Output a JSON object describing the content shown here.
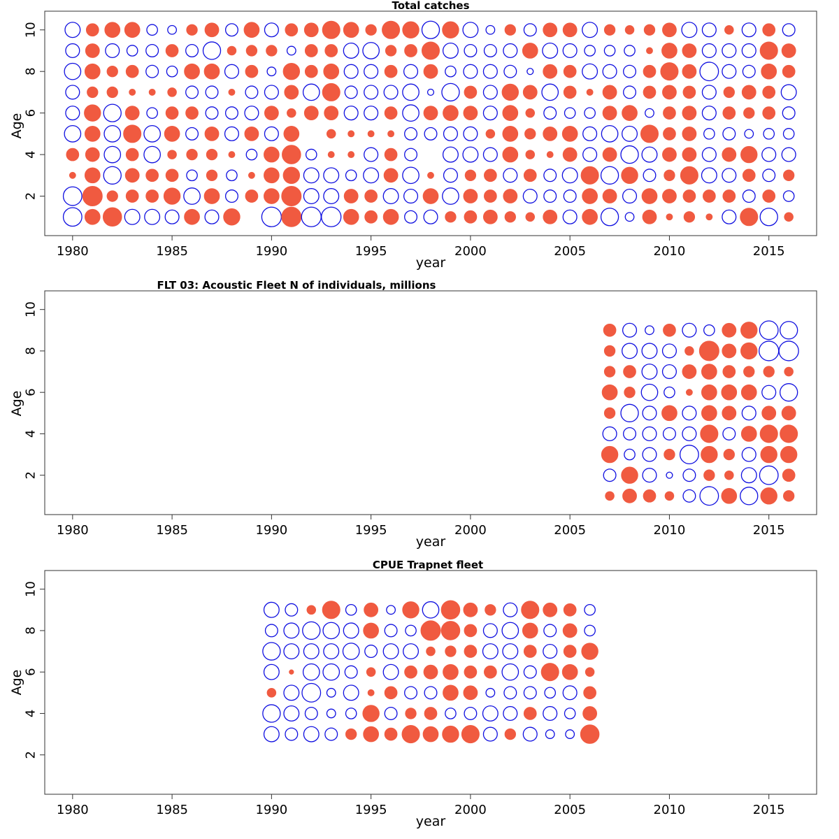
{
  "colors": {
    "positive": "#f05a40",
    "negative": "#1010e0",
    "axis": "#333333"
  },
  "chart_data": [
    {
      "type": "scatter",
      "subtype": "bubble",
      "title": "Total catches",
      "xlabel": "year",
      "ylabel": "Age",
      "xticks": [
        1980,
        1985,
        1990,
        1995,
        2000,
        2005,
        2010,
        2015
      ],
      "yticks": [
        2,
        4,
        6,
        8,
        10
      ],
      "xlim": [
        1978.6,
        2017.4
      ],
      "ylim": [
        0.1,
        10.9
      ],
      "x": [
        1980,
        1981,
        1982,
        1983,
        1984,
        1985,
        1986,
        1987,
        1988,
        1989,
        1990,
        1991,
        1992,
        1993,
        1994,
        1995,
        1996,
        1997,
        1998,
        1999,
        2000,
        2001,
        2002,
        2003,
        2004,
        2005,
        2006,
        2007,
        2008,
        2009,
        2010,
        2011,
        2012,
        2013,
        2014,
        2015,
        2016
      ],
      "ages": [
        1,
        2,
        3,
        4,
        5,
        6,
        7,
        8,
        9,
        10
      ],
      "encoding": "bubble area ~ |residual|; filled orange = positive, open blue = negative",
      "residuals": [
        [
          -0.9,
          0.6,
          0.9,
          -0.6,
          -0.6,
          -0.5,
          0.6,
          -0.5,
          0.7,
          0,
          -1,
          1,
          -1,
          -1,
          0.6,
          0.4,
          0.6,
          -0.4,
          -0.5,
          0.3,
          0.4,
          0.5,
          0.3,
          0.2,
          0.5,
          -0.5,
          0.6,
          -0.8,
          -0.2,
          0.5,
          0.1,
          0.3,
          0.1,
          -0.5,
          0.8,
          -0.8,
          0.2
        ],
        [
          -0.9,
          1,
          0.3,
          0.4,
          0.4,
          0.7,
          -0.7,
          0.6,
          -0.4,
          0.4,
          0.6,
          1,
          -0.6,
          -0.6,
          0.5,
          0.4,
          -0.6,
          -0.5,
          0.6,
          -0.7,
          0.5,
          0.4,
          0.5,
          -0.5,
          -0.4,
          -0.4,
          0.6,
          0.5,
          -0.5,
          0.6,
          0.5,
          0.4,
          0.4,
          0.4,
          -0.4,
          0.4,
          -0.3
        ],
        [
          0.1,
          0.6,
          -0.8,
          0.5,
          0.4,
          0.4,
          -0.3,
          0.3,
          -0.3,
          0.1,
          0.6,
          0.7,
          -0.6,
          -0.6,
          -0.3,
          -0.6,
          0.5,
          -0.7,
          0.1,
          -0.5,
          0.3,
          0.4,
          -0.5,
          0.4,
          -0.4,
          -0.6,
          0.8,
          -0.8,
          0.7,
          -0.4,
          0.3,
          0.8,
          -0.6,
          -0.5,
          0.4,
          -0.4,
          0.3
        ],
        [
          0.4,
          0.5,
          -0.7,
          0.4,
          -0.7,
          0.2,
          0.3,
          0.3,
          0.1,
          -0.3,
          0.6,
          0.9,
          -0.3,
          0.1,
          0.1,
          -0.5,
          0.4,
          -0.4,
          0,
          -0.6,
          -0.6,
          -0.5,
          0.6,
          0.2,
          0.1,
          0.5,
          -0.5,
          0.5,
          -0.8,
          -0.6,
          0.5,
          0.5,
          -0.5,
          0.5,
          0.7,
          -0.5,
          -0.5
        ],
        [
          -0.7,
          0.6,
          -0.7,
          0.8,
          -0.7,
          0.6,
          -0.4,
          0.5,
          -0.5,
          0.5,
          -0.5,
          0.6,
          0,
          0.2,
          0.1,
          0.1,
          0.1,
          -0.4,
          -0.4,
          -0.5,
          -0.5,
          0.2,
          0.6,
          0.3,
          0.5,
          0.6,
          -0.5,
          -0.7,
          -0.6,
          0.8,
          0.4,
          0.5,
          -0.3,
          -0.4,
          -0.2,
          -0.3,
          -0.3
        ],
        [
          -0.5,
          0.7,
          -0.8,
          0.5,
          -0.3,
          0.4,
          0.4,
          -0.4,
          -0.4,
          -0.5,
          0.5,
          0.2,
          0.5,
          0.5,
          -0.5,
          -0.5,
          0.4,
          -0.7,
          0.5,
          0.6,
          0.5,
          -0.5,
          0.6,
          0.2,
          -0.4,
          -0.3,
          -0.3,
          0.5,
          0.6,
          -0.2,
          0.4,
          0.5,
          -0.5,
          0.4,
          0.3,
          0.4,
          -0.4
        ],
        [
          -0.5,
          0.3,
          0.3,
          0.1,
          0.1,
          0.2,
          -0.4,
          -0.4,
          0.1,
          -0.4,
          -0.5,
          0.5,
          -0.7,
          0.8,
          -0.4,
          -0.5,
          -0.5,
          -0.7,
          -0.1,
          -0.8,
          0.4,
          -0.5,
          0.7,
          0.5,
          -0.7,
          0.4,
          0.1,
          0.5,
          -0.4,
          0.4,
          0.5,
          0.4,
          -0.5,
          0.3,
          0.5,
          0.4,
          -0.6
        ],
        [
          -0.7,
          0.6,
          0.3,
          0.4,
          -0.4,
          -0.3,
          0.6,
          0.6,
          -0.5,
          0.4,
          -0.2,
          0.7,
          0.4,
          0.6,
          -0.5,
          -0.5,
          0.4,
          -0.5,
          0.5,
          -0.3,
          -0.5,
          -0.5,
          -0.4,
          -0.1,
          0.5,
          0.4,
          -0.6,
          -0.5,
          -0.4,
          0.4,
          0.8,
          0.5,
          -0.9,
          -0.5,
          -0.4,
          0.6,
          0.4
        ],
        [
          -0.5,
          0.5,
          -0.5,
          -0.3,
          -0.4,
          0.4,
          -0.4,
          -0.8,
          0.2,
          0.3,
          0.3,
          -0.2,
          0.4,
          0.4,
          -0.6,
          -0.7,
          0.3,
          0.4,
          0.8,
          -0.6,
          -0.4,
          -0.4,
          -0.5,
          0.6,
          -0.6,
          -0.5,
          -0.3,
          -0.3,
          -0.3,
          0.1,
          0.6,
          0.5,
          -0.5,
          -0.5,
          -0.5,
          0.8,
          0.5
        ],
        [
          -0.6,
          0.4,
          0.6,
          0.6,
          -0.3,
          -0.2,
          0.3,
          0.5,
          -0.4,
          0.6,
          -0.5,
          0.4,
          0.5,
          0.8,
          0.6,
          0.3,
          0.8,
          0.7,
          -0.8,
          0.7,
          -0.6,
          -0.2,
          0.3,
          -0.4,
          0.5,
          0.5,
          -0.6,
          0.3,
          0.2,
          0.3,
          0.5,
          -0.6,
          -0.5,
          0.2,
          -0.5,
          0.4,
          -0.4
        ]
      ]
    },
    {
      "type": "scatter",
      "subtype": "bubble",
      "title": "FLT 03: Acoustic Fleet   N of individuals, millions",
      "xlabel": "year",
      "ylabel": "Age",
      "xticks": [
        1980,
        1985,
        1990,
        1995,
        2000,
        2005,
        2010,
        2015
      ],
      "yticks": [
        2,
        4,
        6,
        8,
        10
      ],
      "xlim": [
        1978.6,
        2017.4
      ],
      "ylim": [
        0.1,
        10.9
      ],
      "x": [
        2007,
        2008,
        2009,
        2010,
        2011,
        2012,
        2013,
        2014,
        2015,
        2016
      ],
      "ages": [
        1,
        2,
        3,
        4,
        5,
        6,
        7,
        8,
        9
      ],
      "encoding": "bubble area ~ |residual|; filled orange = positive, open blue = negative",
      "residuals": [
        [
          0.2,
          0.5,
          0.4,
          0.2,
          -0.4,
          -0.9,
          0.6,
          -0.8,
          0.7,
          0.3
        ],
        [
          -0.4,
          0.7,
          -0.5,
          -0.1,
          -0.4,
          0.3,
          0.2,
          -0.6,
          -0.9,
          0.4
        ],
        [
          0.7,
          -0.3,
          -0.5,
          0.3,
          -0.9,
          0.7,
          0.3,
          -0.5,
          0.7,
          0.7
        ],
        [
          -0.5,
          -0.4,
          -0.5,
          -0.4,
          -0.5,
          0.8,
          -0.4,
          0.6,
          0.8,
          0.8
        ],
        [
          0.3,
          -0.8,
          -0.5,
          0.6,
          -0.5,
          0.6,
          0.5,
          -0.5,
          0.5,
          0.5
        ],
        [
          0.6,
          0.3,
          -0.7,
          -0.3,
          0.1,
          0.6,
          0.6,
          0.6,
          -0.5,
          -0.8
        ],
        [
          0.3,
          0.4,
          -0.6,
          -0.5,
          0.5,
          0.6,
          0.4,
          0.3,
          0.3,
          0.2
        ],
        [
          0.3,
          -0.6,
          -0.6,
          -0.5,
          0.2,
          1,
          0.5,
          0.7,
          -1,
          -1
        ],
        [
          0.4,
          -0.5,
          -0.2,
          0.4,
          -0.5,
          -0.3,
          0.5,
          0.7,
          -0.9,
          -0.8
        ]
      ]
    },
    {
      "type": "scatter",
      "subtype": "bubble",
      "title": "CPUE Trapnet fleet",
      "xlabel": "year",
      "ylabel": "Age",
      "xticks": [
        1980,
        1985,
        1990,
        1995,
        2000,
        2005,
        2010,
        2015
      ],
      "yticks": [
        2,
        4,
        6,
        8,
        10
      ],
      "xlim": [
        1978.6,
        2017.4
      ],
      "ylim": [
        0.1,
        10.9
      ],
      "x": [
        1990,
        1991,
        1992,
        1993,
        1994,
        1995,
        1996,
        1997,
        1998,
        1999,
        2000,
        2001,
        2002,
        2003,
        2004,
        2005,
        2006
      ],
      "ages": [
        3,
        4,
        5,
        6,
        7,
        8,
        9
      ],
      "encoding": "bubble area ~ |residual|; filled orange = positive, open blue = negative",
      "residuals": [
        [
          -0.6,
          -0.4,
          -0.6,
          -0.4,
          0.3,
          0.6,
          0.4,
          0.8,
          0.6,
          0.7,
          0.8,
          -0.5,
          0.3,
          -0.5,
          -0.2,
          -0.2,
          0.9
        ],
        [
          -0.8,
          -0.6,
          -0.4,
          -0.2,
          -0.3,
          0.7,
          -0.4,
          0.3,
          0.4,
          -0.3,
          -0.4,
          -0.6,
          -0.5,
          0.4,
          -0.5,
          -0.3,
          0.5
        ],
        [
          0.2,
          -0.6,
          -0.9,
          -0.2,
          -0.6,
          0.1,
          0.4,
          -0.4,
          -0.4,
          0.6,
          0.5,
          -0.2,
          -0.4,
          -0.4,
          -0.3,
          -0.5,
          0.4
        ],
        [
          -0.6,
          0.05,
          -0.7,
          -0.7,
          -0.4,
          0.2,
          -0.6,
          0.4,
          0.5,
          0.6,
          0.4,
          0.4,
          -0.7,
          -0.4,
          0.8,
          0.6,
          0.2
        ],
        [
          -0.8,
          -0.6,
          -0.6,
          -0.6,
          -0.7,
          -0.4,
          -0.6,
          -0.6,
          0.2,
          0.3,
          0.4,
          -0.6,
          -0.6,
          0.4,
          -0.5,
          0.4,
          0.7
        ],
        [
          -0.4,
          -0.6,
          -0.8,
          -0.7,
          -0.6,
          0.6,
          -0.4,
          -0.3,
          1,
          0.9,
          0.4,
          -0.5,
          -0.7,
          0.6,
          -0.4,
          0.5,
          -0.3
        ],
        [
          -0.6,
          -0.4,
          0.2,
          0.8,
          -0.3,
          0.5,
          -0.2,
          0.7,
          -0.7,
          0.9,
          0.5,
          0.3,
          -0.5,
          0.8,
          0.5,
          0.4,
          -0.3
        ]
      ]
    }
  ]
}
